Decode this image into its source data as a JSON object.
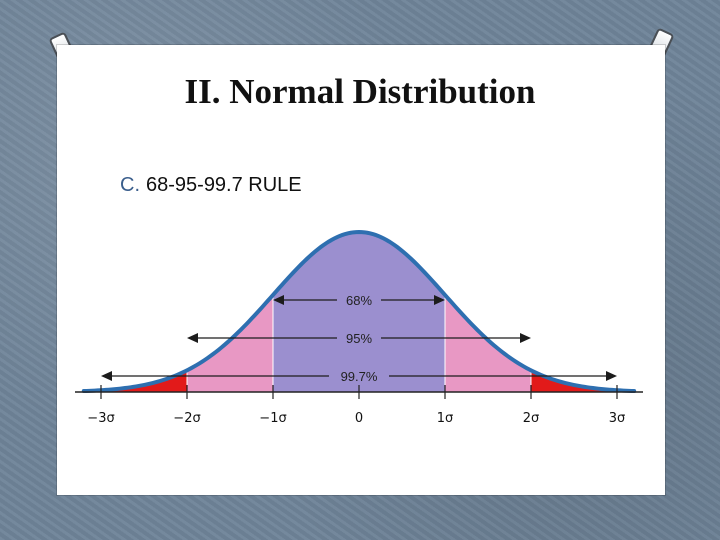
{
  "slide": {
    "title": "II. Normal Distribution",
    "bullet": {
      "marker": "C.",
      "text": "68-95-99.7 RULE"
    }
  },
  "chart_data": {
    "type": "area",
    "x_ticks": [
      "−3σ",
      "−2σ",
      "−1σ",
      "0",
      "1σ",
      "2σ",
      "3σ"
    ],
    "x_values": [
      -3,
      -2,
      -1,
      0,
      1,
      2,
      3
    ],
    "xlim": [
      -3.2,
      3.2
    ],
    "bands": [
      {
        "label": "68%",
        "from": -1,
        "to": 1
      },
      {
        "label": "95%",
        "from": -2,
        "to": 2
      },
      {
        "label": "99.7%",
        "from": -3,
        "to": 3
      }
    ],
    "colors": {
      "curve": "#2e6fb0",
      "inner": "#9b8fcf",
      "middle": "#e898c4",
      "tails": "#e21a1a",
      "axis": "#222222"
    }
  }
}
